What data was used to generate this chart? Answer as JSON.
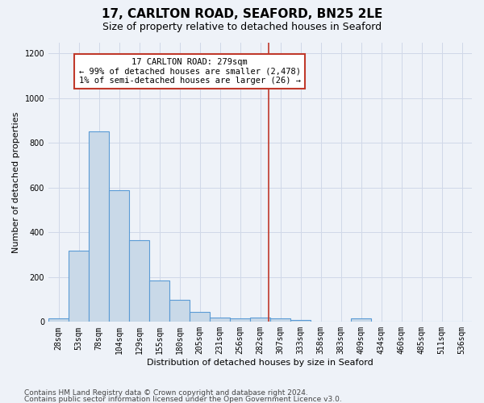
{
  "title": "17, CARLTON ROAD, SEAFORD, BN25 2LE",
  "subtitle": "Size of property relative to detached houses in Seaford",
  "xlabel": "Distribution of detached houses by size in Seaford",
  "ylabel": "Number of detached properties",
  "footnote1": "Contains HM Land Registry data © Crown copyright and database right 2024.",
  "footnote2": "Contains public sector information licensed under the Open Government Licence v3.0.",
  "bin_labels": [
    "28sqm",
    "53sqm",
    "78sqm",
    "104sqm",
    "129sqm",
    "155sqm",
    "180sqm",
    "205sqm",
    "231sqm",
    "256sqm",
    "282sqm",
    "307sqm",
    "333sqm",
    "358sqm",
    "383sqm",
    "409sqm",
    "434sqm",
    "460sqm",
    "485sqm",
    "511sqm",
    "536sqm"
  ],
  "bar_heights": [
    15,
    320,
    850,
    590,
    365,
    185,
    100,
    45,
    20,
    15,
    20,
    15,
    10,
    0,
    0,
    15,
    0,
    0,
    0,
    0,
    0
  ],
  "bar_color": "#c9d9e8",
  "bar_edge_color": "#5b9bd5",
  "bar_edge_width": 0.8,
  "vline_x_index": 10.4,
  "vline_color": "#c0392b",
  "annotation_text": "17 CARLTON ROAD: 279sqm\n← 99% of detached houses are smaller (2,478)\n1% of semi-detached houses are larger (26) →",
  "ylim": [
    0,
    1250
  ],
  "yticks": [
    0,
    200,
    400,
    600,
    800,
    1000,
    1200
  ],
  "grid_color": "#d0d8e8",
  "bg_color": "#eef2f8",
  "title_fontsize": 11,
  "subtitle_fontsize": 9,
  "axis_label_fontsize": 8,
  "tick_fontsize": 7,
  "annotation_fontsize": 7.5,
  "footnote_fontsize": 6.5
}
